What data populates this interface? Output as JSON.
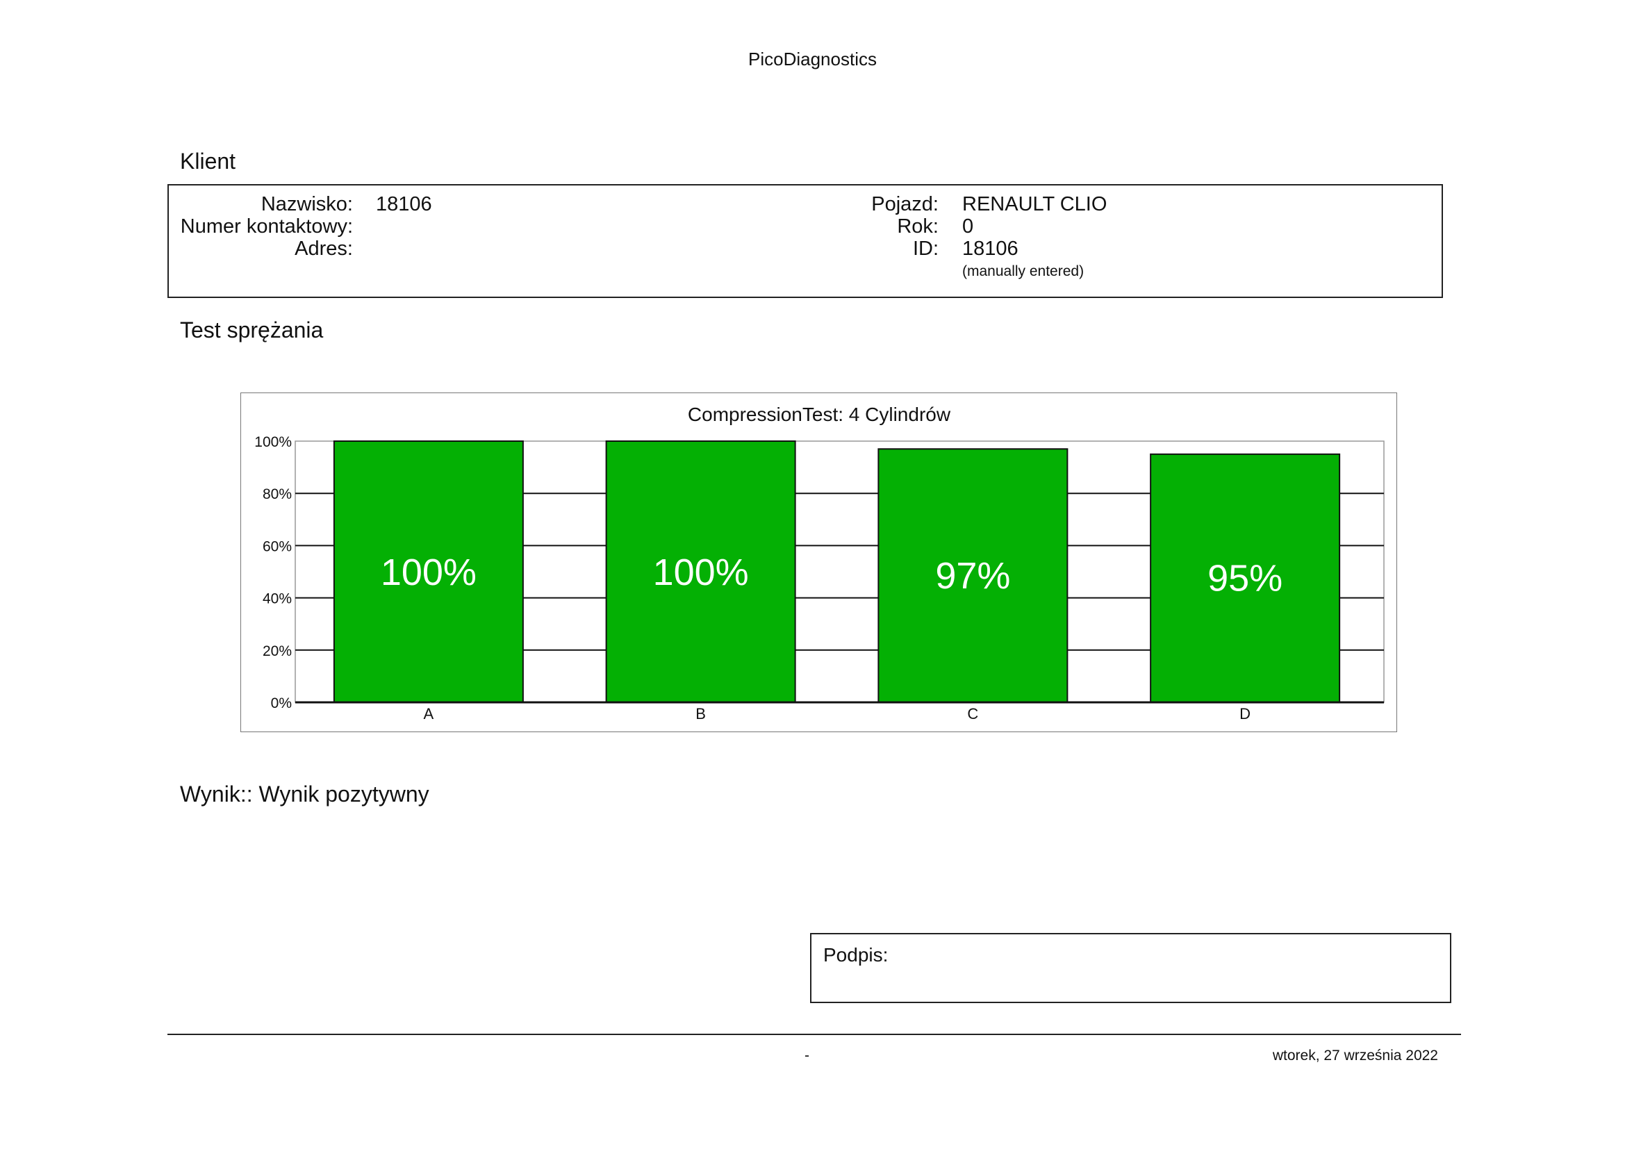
{
  "header": {
    "title": "PicoDiagnostics"
  },
  "client_section": {
    "title": "Klient",
    "left_fields": [
      {
        "label": "Nazwisko:",
        "value": "18106"
      },
      {
        "label": "Numer kontaktowy:",
        "value": ""
      },
      {
        "label": "Adres:",
        "value": ""
      }
    ],
    "right_fields": [
      {
        "label": "Pojazd:",
        "value": "RENAULT CLIO"
      },
      {
        "label": "Rok:",
        "value": "0"
      },
      {
        "label": "ID:",
        "value": "18106"
      }
    ],
    "id_note": "(manually entered)"
  },
  "test_section": {
    "title": "Test sprężania"
  },
  "chart_data": {
    "type": "bar",
    "title": "CompressionTest: 4 Cylindrów",
    "categories": [
      "A",
      "B",
      "C",
      "D"
    ],
    "values": [
      100,
      100,
      97,
      95
    ],
    "value_labels": [
      "100%",
      "100%",
      "97%",
      "95%"
    ],
    "ylim": [
      0,
      100
    ],
    "yticks": [
      "0%",
      "20%",
      "40%",
      "60%",
      "80%",
      "100%"
    ],
    "bar_color": "#04b004",
    "grid": true
  },
  "result": {
    "text": "Wynik:: Wynik pozytywny"
  },
  "signature": {
    "label": "Podpis:"
  },
  "footer": {
    "page": "-",
    "date": "wtorek, 27 września 2022"
  }
}
